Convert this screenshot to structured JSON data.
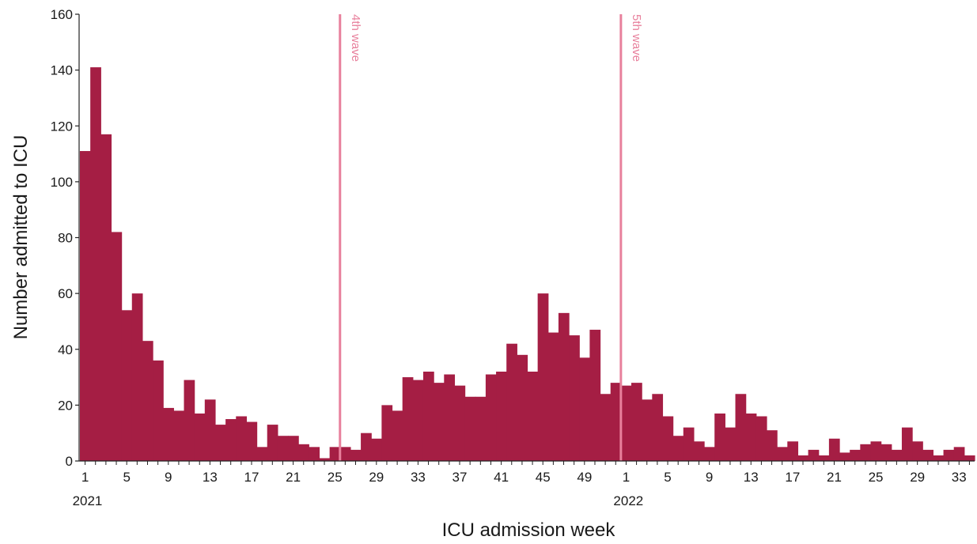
{
  "chart_data": {
    "type": "bar",
    "title": "",
    "xlabel": "ICU admission week",
    "ylabel": "Number admitted to ICU",
    "ylim": [
      0,
      160
    ],
    "yticks": [
      0,
      20,
      40,
      60,
      80,
      100,
      120,
      140,
      160
    ],
    "grid": false,
    "legend": "none",
    "bar_color": "#A51E44",
    "line_color": "#E8809C",
    "x_tick_labels": [
      "1",
      "5",
      "9",
      "13",
      "17",
      "21",
      "25",
      "29",
      "33",
      "37",
      "41",
      "45",
      "49",
      "1",
      "5",
      "9",
      "13",
      "17",
      "21",
      "25",
      "29",
      "33"
    ],
    "year_labels": [
      "2021",
      "2022"
    ],
    "weeks": [
      "2021-1",
      "2021-2",
      "2021-3",
      "2021-4",
      "2021-5",
      "2021-6",
      "2021-7",
      "2021-8",
      "2021-9",
      "2021-10",
      "2021-11",
      "2021-12",
      "2021-13",
      "2021-14",
      "2021-15",
      "2021-16",
      "2021-17",
      "2021-18",
      "2021-19",
      "2021-20",
      "2021-21",
      "2021-22",
      "2021-23",
      "2021-24",
      "2021-25",
      "2021-26",
      "2021-27",
      "2021-28",
      "2021-29",
      "2021-30",
      "2021-31",
      "2021-32",
      "2021-33",
      "2021-34",
      "2021-35",
      "2021-36",
      "2021-37",
      "2021-38",
      "2021-39",
      "2021-40",
      "2021-41",
      "2021-42",
      "2021-43",
      "2021-44",
      "2021-45",
      "2021-46",
      "2021-47",
      "2021-48",
      "2021-49",
      "2021-50",
      "2021-51",
      "2021-52",
      "2022-1",
      "2022-2",
      "2022-3",
      "2022-4",
      "2022-5",
      "2022-6",
      "2022-7",
      "2022-8",
      "2022-9",
      "2022-10",
      "2022-11",
      "2022-12",
      "2022-13",
      "2022-14",
      "2022-15",
      "2022-16",
      "2022-17",
      "2022-18",
      "2022-19",
      "2022-20",
      "2022-21",
      "2022-22",
      "2022-23",
      "2022-24",
      "2022-25",
      "2022-26",
      "2022-27",
      "2022-28",
      "2022-29",
      "2022-30",
      "2022-31",
      "2022-32",
      "2022-33",
      "2022-34"
    ],
    "values": [
      111,
      141,
      117,
      82,
      54,
      60,
      43,
      36,
      19,
      18,
      29,
      17,
      22,
      13,
      15,
      16,
      14,
      5,
      13,
      9,
      9,
      6,
      5,
      1,
      5,
      5,
      4,
      10,
      8,
      20,
      18,
      30,
      29,
      32,
      28,
      31,
      27,
      23,
      23,
      31,
      32,
      42,
      38,
      32,
      60,
      46,
      53,
      45,
      37,
      47,
      24,
      28,
      27,
      28,
      22,
      24,
      16,
      9,
      12,
      7,
      5,
      17,
      12,
      24,
      17,
      16,
      11,
      5,
      7,
      2,
      4,
      2,
      8,
      3,
      4,
      6,
      7,
      6,
      4,
      12,
      7,
      4,
      2,
      4,
      5,
      2
    ],
    "annotations": [
      {
        "text": "4th wave",
        "week": "2021-26"
      },
      {
        "text": "5th wave",
        "week": "2022-1"
      }
    ]
  }
}
